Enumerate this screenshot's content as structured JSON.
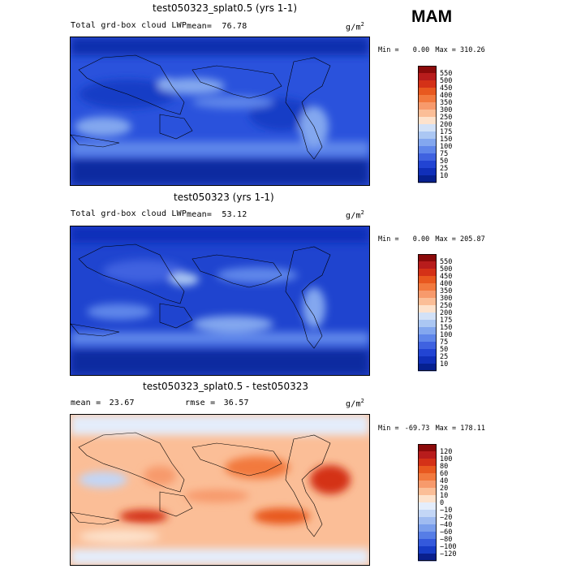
{
  "season": "MAM",
  "chart_data": [
    {
      "type": "heatmap",
      "title": "test050323_splat0.5 (yrs 1-1)",
      "left_label": "Total grd-box cloud LWP",
      "mean_label": "mean=",
      "mean_value": "76.78",
      "units_base": "g/m",
      "units_exp": "2",
      "min_label": "Min =",
      "min_value": "0.00",
      "max_label": "Max =",
      "max_value": "310.26",
      "colorbar": {
        "labels": [
          "550",
          "500",
          "450",
          "400",
          "350",
          "300",
          "250",
          "200",
          "175",
          "150",
          "100",
          "75",
          "50",
          "25",
          "10"
        ],
        "colors": [
          "#8b0a0a",
          "#b81c1c",
          "#d43117",
          "#e8581f",
          "#f2793e",
          "#f79a6c",
          "#fbbe97",
          "#fde2cc",
          "#d2e1f7",
          "#abc7f3",
          "#83a7ef",
          "#5f86ea",
          "#3f62e0",
          "#2244d3",
          "#102fb9",
          "#06208f"
        ]
      }
    },
    {
      "type": "heatmap",
      "title": "test050323 (yrs 1-1)",
      "left_label": "Total grd-box cloud LWP",
      "mean_label": "mean=",
      "mean_value": "53.12",
      "units_base": "g/m",
      "units_exp": "2",
      "min_label": "Min =",
      "min_value": "0.00",
      "max_label": "Max =",
      "max_value": "205.87",
      "colorbar": {
        "labels": [
          "550",
          "500",
          "450",
          "400",
          "350",
          "300",
          "250",
          "200",
          "175",
          "150",
          "100",
          "75",
          "50",
          "25",
          "10"
        ],
        "colors": [
          "#8b0a0a",
          "#b81c1c",
          "#d43117",
          "#e8581f",
          "#f2793e",
          "#f79a6c",
          "#fbbe97",
          "#fde2cc",
          "#d2e1f7",
          "#abc7f3",
          "#83a7ef",
          "#5f86ea",
          "#3f62e0",
          "#2244d3",
          "#102fb9",
          "#06208f"
        ]
      }
    },
    {
      "type": "heatmap",
      "title": "test050323_splat0.5 - test050323",
      "mean_label": "mean =",
      "mean_value": "23.67",
      "rmse_label": "rmse =",
      "rmse_value": "36.57",
      "units_base": "g/m",
      "units_exp": "2",
      "min_label": "Min =",
      "min_value": "-69.73",
      "max_label": "Max =",
      "max_value": "178.11",
      "colorbar": {
        "labels": [
          "120",
          "100",
          "80",
          "60",
          "40",
          "20",
          "10",
          "0",
          "−10",
          "−20",
          "−40",
          "−60",
          "−80",
          "−100",
          "−120"
        ],
        "colors": [
          "#8b0a0a",
          "#b81c1c",
          "#d43117",
          "#e8581f",
          "#f2793e",
          "#f79a6c",
          "#fbbe97",
          "#fde2cc",
          "#e4edfb",
          "#c3d6f6",
          "#9fbbf1",
          "#7a9eec",
          "#567de6",
          "#3459dc",
          "#173cc6",
          "#0a1f8c"
        ]
      }
    }
  ]
}
